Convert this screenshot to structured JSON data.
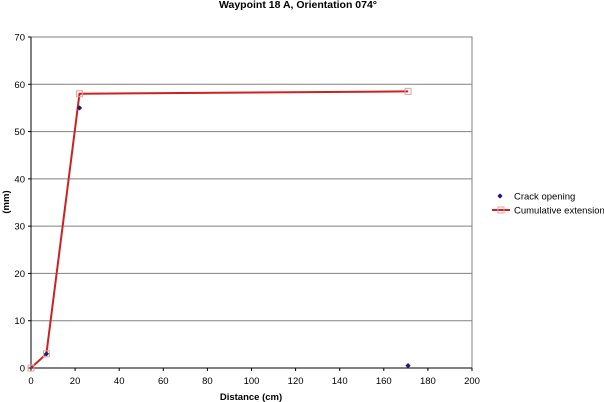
{
  "chart_data": {
    "type": "scatter",
    "title": "Waypoint 18 A, Orientation 074°",
    "xlabel": "Distance (cm)",
    "ylabel": "(mm)",
    "xlim": [
      0,
      200
    ],
    "ylim": [
      0,
      70
    ],
    "xticks": [
      0,
      20,
      40,
      60,
      80,
      100,
      120,
      140,
      160,
      180,
      200
    ],
    "yticks": [
      0,
      10,
      20,
      30,
      40,
      50,
      60,
      70
    ],
    "grid": true,
    "legend_position": "right",
    "series": [
      {
        "name": "Crack opening",
        "kind": "scatter",
        "marker": "diamond",
        "color": "#1a1a7a",
        "x": [
          7,
          22,
          171
        ],
        "y": [
          3,
          55,
          0.5
        ]
      },
      {
        "name": "Cumulative extension",
        "kind": "line",
        "marker": "square",
        "color": "#cc2222",
        "marker_color": "#e8a0a0",
        "x": [
          0,
          7,
          22,
          171
        ],
        "y": [
          0,
          3,
          58,
          58.5
        ]
      }
    ]
  }
}
